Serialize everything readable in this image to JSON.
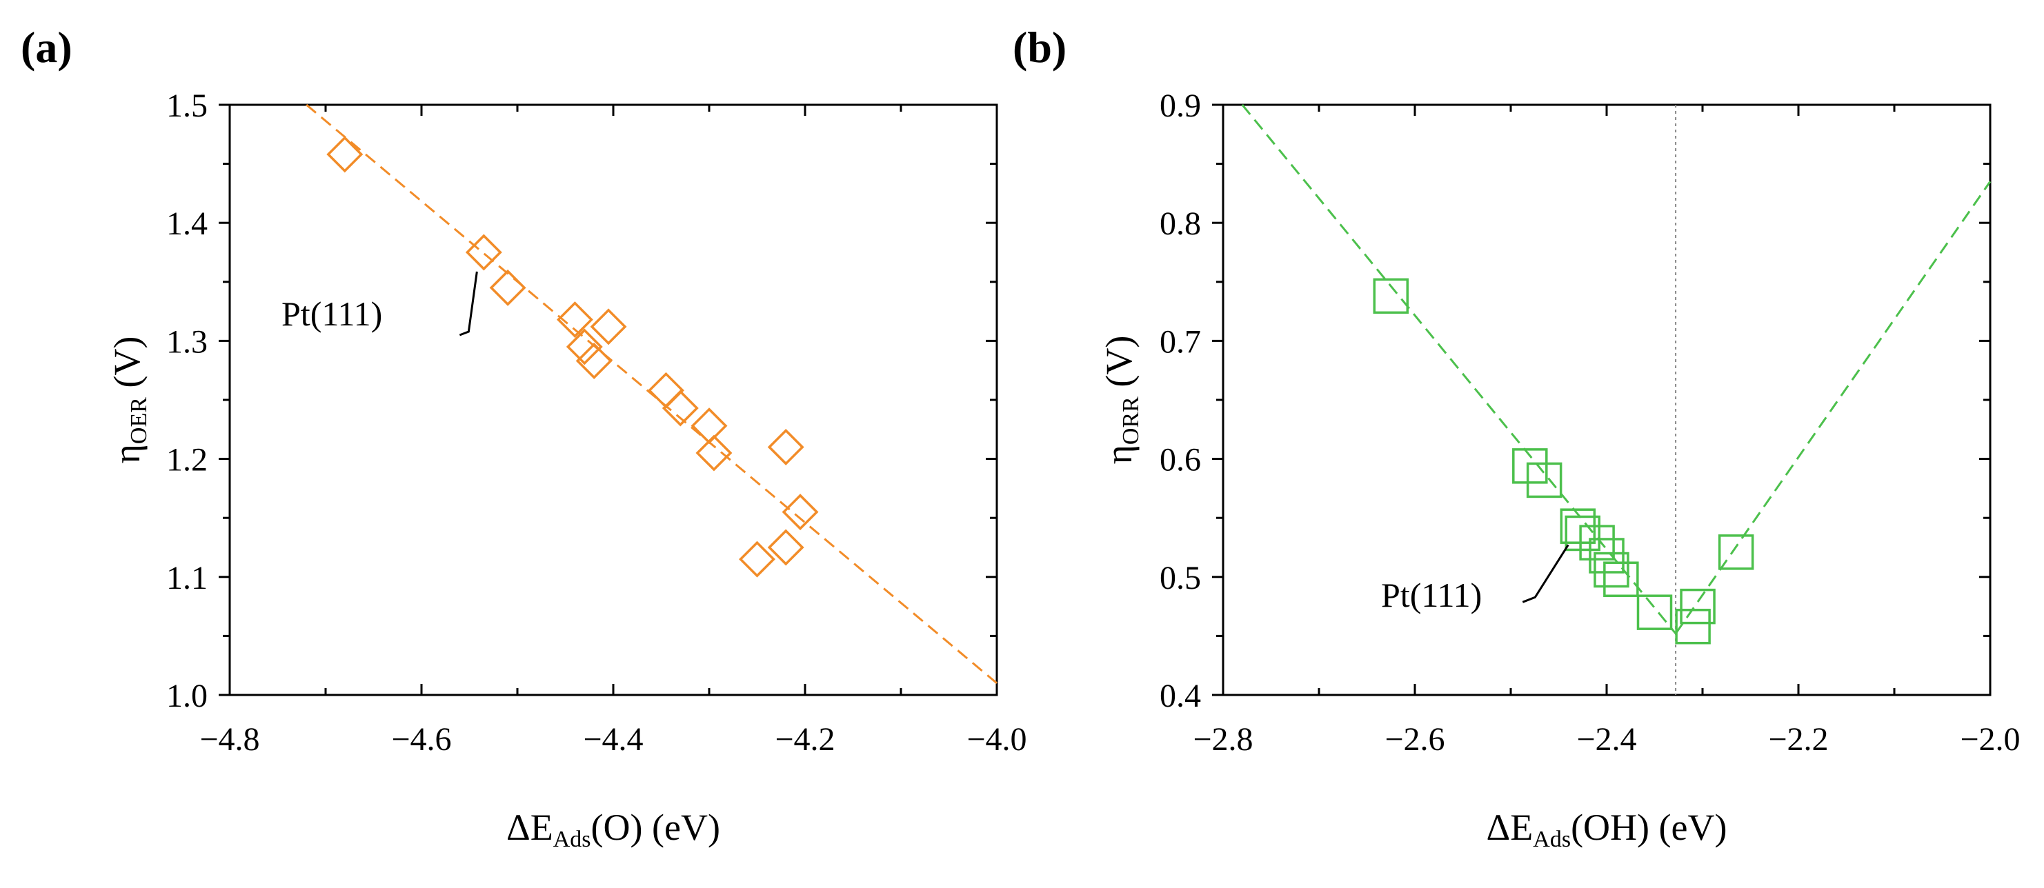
{
  "colors": {
    "orange": "#F28C28",
    "green": "#4CC04C",
    "axis": "#000000",
    "guide": "#888888"
  },
  "panels": [
    {
      "tag": "(a)",
      "ylabel_main": "η",
      "ylabel_sub": "OER",
      "ylabel_unit": " (V)",
      "xlabel_pre": "ΔE",
      "xlabel_sub": "Ads",
      "xlabel_post": "(O) (eV)",
      "annotation": "Pt(111)",
      "xticks": [
        "−4.8",
        "−4.6",
        "−4.4",
        "−4.2",
        "−4.0"
      ],
      "yticks": [
        "1.0",
        "1.1",
        "1.2",
        "1.3",
        "1.4",
        "1.5"
      ]
    },
    {
      "tag": "(b)",
      "ylabel_main": "η",
      "ylabel_sub": "ORR",
      "ylabel_unit": " (V)",
      "xlabel_pre": "ΔE",
      "xlabel_sub": "Ads",
      "xlabel_post": "(OH) (eV)",
      "annotation": "Pt(111)",
      "xticks": [
        "−2.8",
        "−2.6",
        "−2.4",
        "−2.2",
        "−2.0"
      ],
      "yticks": [
        "0.4",
        "0.5",
        "0.6",
        "0.7",
        "0.8",
        "0.9"
      ]
    }
  ],
  "chart_data": [
    {
      "type": "scatter",
      "title": "(a)",
      "xlabel": "ΔE_Ads(O) (eV)",
      "ylabel": "η_OER (V)",
      "xlim": [
        -4.8,
        -4.0
      ],
      "ylim": [
        1.0,
        1.5
      ],
      "xticks": [
        -4.8,
        -4.6,
        -4.4,
        -4.2,
        -4.0
      ],
      "yticks": [
        1.0,
        1.1,
        1.2,
        1.3,
        1.4,
        1.5
      ],
      "marker": "diamond",
      "color": "#F28C28",
      "points": [
        {
          "x": -4.68,
          "y": 1.458
        },
        {
          "x": -4.535,
          "y": 1.375
        },
        {
          "x": -4.51,
          "y": 1.345
        },
        {
          "x": -4.44,
          "y": 1.318
        },
        {
          "x": -4.405,
          "y": 1.312
        },
        {
          "x": -4.43,
          "y": 1.295
        },
        {
          "x": -4.42,
          "y": 1.283
        },
        {
          "x": -4.345,
          "y": 1.258
        },
        {
          "x": -4.33,
          "y": 1.243
        },
        {
          "x": -4.3,
          "y": 1.228
        },
        {
          "x": -4.295,
          "y": 1.205
        },
        {
          "x": -4.22,
          "y": 1.21
        },
        {
          "x": -4.205,
          "y": 1.155
        },
        {
          "x": -4.22,
          "y": 1.125
        },
        {
          "x": -4.25,
          "y": 1.115
        }
      ],
      "fit_lines": [
        {
          "x": [
            -4.72,
            -4.0
          ],
          "y": [
            1.5,
            1.01
          ],
          "style": "dashed"
        }
      ],
      "annotation": {
        "text": "Pt(111)",
        "target": {
          "x": -4.535,
          "y": 1.375
        }
      }
    },
    {
      "type": "scatter",
      "title": "(b)",
      "xlabel": "ΔE_Ads(OH) (eV)",
      "ylabel": "η_ORR (V)",
      "xlim": [
        -2.8,
        -2.0
      ],
      "ylim": [
        0.4,
        0.9
      ],
      "xticks": [
        -2.8,
        -2.6,
        -2.4,
        -2.2,
        -2.0
      ],
      "yticks": [
        0.4,
        0.5,
        0.6,
        0.7,
        0.8,
        0.9
      ],
      "marker": "square",
      "color": "#4CC04C",
      "points": [
        {
          "x": -2.625,
          "y": 0.738
        },
        {
          "x": -2.48,
          "y": 0.594
        },
        {
          "x": -2.465,
          "y": 0.582
        },
        {
          "x": -2.43,
          "y": 0.543
        },
        {
          "x": -2.425,
          "y": 0.537
        },
        {
          "x": -2.41,
          "y": 0.529
        },
        {
          "x": -2.4,
          "y": 0.518
        },
        {
          "x": -2.395,
          "y": 0.506
        },
        {
          "x": -2.385,
          "y": 0.498
        },
        {
          "x": -2.35,
          "y": 0.47
        },
        {
          "x": -2.31,
          "y": 0.458
        },
        {
          "x": -2.305,
          "y": 0.475
        },
        {
          "x": -2.265,
          "y": 0.521
        }
      ],
      "fit_lines": [
        {
          "x": [
            -2.78,
            -2.328
          ],
          "y": [
            0.9,
            0.452
          ],
          "style": "dashed"
        },
        {
          "x": [
            -2.328,
            -2.0
          ],
          "y": [
            0.452,
            0.835
          ],
          "style": "dashed"
        }
      ],
      "vline": {
        "x": -2.328,
        "style": "dotted"
      },
      "annotation": {
        "text": "Pt(111)",
        "target": {
          "x": -2.43,
          "y": 0.54
        }
      }
    }
  ]
}
